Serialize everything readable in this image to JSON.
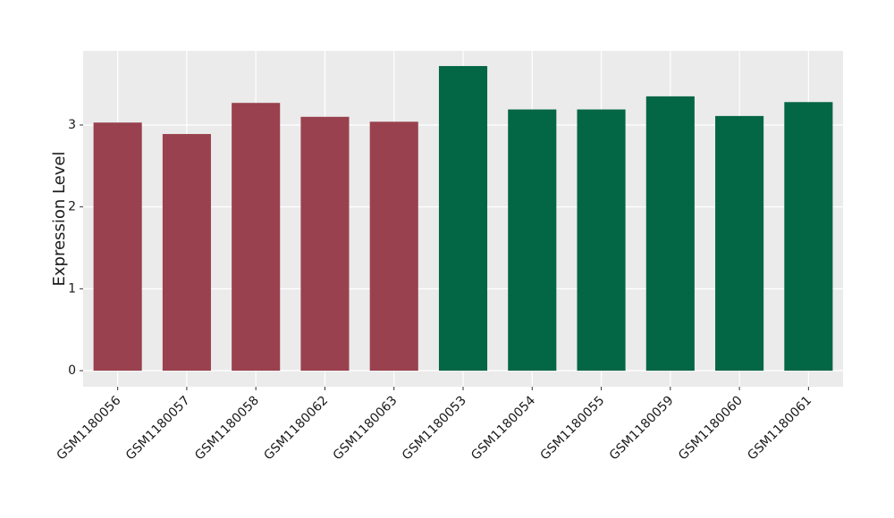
{
  "chart_data": {
    "type": "bar",
    "y_label": "Expression Level",
    "categories": [
      "GSM1180056",
      "GSM1180057",
      "GSM1180058",
      "GSM1180062",
      "GSM1180063",
      "GSM1180053",
      "GSM1180054",
      "GSM1180055",
      "GSM1180059",
      "GSM1180060",
      "GSM1180061"
    ],
    "values": [
      3.03,
      2.89,
      3.27,
      3.1,
      3.04,
      3.72,
      3.19,
      3.19,
      3.35,
      3.11,
      3.28
    ],
    "colors": [
      "#99414e",
      "#99414e",
      "#99414e",
      "#99414e",
      "#99414e",
      "#036644",
      "#036644",
      "#036644",
      "#036644",
      "#036644",
      "#036644"
    ],
    "ylim": [
      -0.196,
      3.905
    ],
    "yticks": [
      0,
      1,
      2,
      3
    ],
    "grid": true
  }
}
